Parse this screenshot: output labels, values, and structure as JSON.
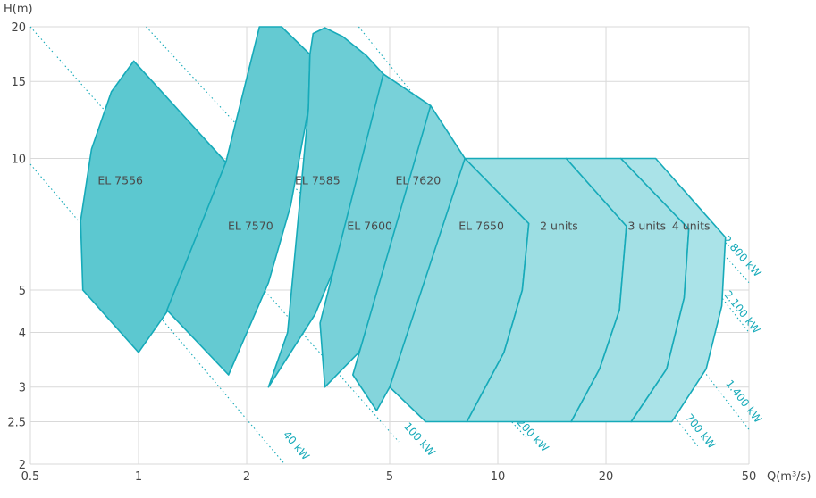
{
  "chart_data": {
    "type": "area",
    "xlabel": "Q(m³/s)",
    "ylabel": "H(m)",
    "x_scale": "log",
    "y_scale": "log",
    "xlim": [
      0.5,
      50
    ],
    "ylim": [
      2,
      20
    ],
    "x_ticks": [
      {
        "value": 0.5,
        "label": "0.5"
      },
      {
        "value": 1,
        "label": "1"
      },
      {
        "value": 2,
        "label": "2"
      },
      {
        "value": 5,
        "label": "5"
      },
      {
        "value": 10,
        "label": "10"
      },
      {
        "value": 20,
        "label": "20"
      },
      {
        "value": 50,
        "label": "50"
      }
    ],
    "x_grid": [
      0.5,
      1,
      2,
      5,
      10,
      20,
      50
    ],
    "y_ticks": [
      {
        "value": 2,
        "label": "2"
      },
      {
        "value": 2.5,
        "label": "2.5"
      },
      {
        "value": 3,
        "label": "3"
      },
      {
        "value": 4,
        "label": "4"
      },
      {
        "value": 5,
        "label": "5"
      },
      {
        "value": 10,
        "label": "10"
      },
      {
        "value": 15,
        "label": "15"
      },
      {
        "value": 20,
        "label": "20"
      }
    ],
    "grid": true,
    "regions": [
      {
        "name": "EL 7556",
        "color": "#5cc8d0",
        "label_at": [
          0.89,
          8.9
        ],
        "points": [
          [
            0.7,
            5.0
          ],
          [
            0.69,
            7.2
          ],
          [
            0.74,
            10.5
          ],
          [
            0.84,
            14.2
          ],
          [
            0.97,
            16.7
          ],
          [
            1.75,
            9.8
          ],
          [
            1.58,
            7.4
          ],
          [
            1.3,
            4.9
          ],
          [
            1.0,
            3.6
          ]
        ]
      },
      {
        "name": "EL 7570",
        "color": "#64cad2",
        "label_at": [
          2.05,
          7.0
        ],
        "points": [
          [
            1.2,
            4.5
          ],
          [
            1.75,
            9.8
          ],
          [
            2.17,
            20.0
          ],
          [
            2.5,
            20.0
          ],
          [
            3.0,
            17.3
          ],
          [
            2.97,
            13.0
          ],
          [
            2.65,
            7.8
          ],
          [
            2.3,
            5.2
          ],
          [
            1.78,
            3.2
          ]
        ]
      },
      {
        "name": "EL 7585",
        "color": "#6ccdd5",
        "label_at": [
          3.15,
          8.9
        ],
        "points": [
          [
            2.6,
            4.0
          ],
          [
            2.97,
            13.0
          ],
          [
            3.0,
            17.3
          ],
          [
            3.06,
            19.3
          ],
          [
            3.3,
            19.9
          ],
          [
            3.7,
            19.0
          ],
          [
            4.3,
            17.2
          ],
          [
            4.8,
            15.6
          ],
          [
            4.55,
            11.6
          ],
          [
            3.98,
            7.2
          ],
          [
            3.1,
            4.4
          ],
          [
            2.3,
            3.0
          ]
        ]
      },
      {
        "name": "EL 7600",
        "color": "#78d1d9",
        "label_at": [
          4.4,
          7.0
        ],
        "points": [
          [
            3.2,
            4.2
          ],
          [
            4.8,
            15.6
          ],
          [
            6.5,
            13.2
          ],
          [
            6.12,
            9.5
          ],
          [
            5.25,
            6.0
          ],
          [
            4.1,
            3.6
          ],
          [
            3.3,
            3.0
          ]
        ]
      },
      {
        "name": "EL 7620",
        "color": "#84d5dc",
        "label_at": [
          6.0,
          8.9
        ],
        "points": [
          [
            3.95,
            3.2
          ],
          [
            6.5,
            13.2
          ],
          [
            8.1,
            10.0
          ],
          [
            7.55,
            7.4
          ],
          [
            6.5,
            4.8
          ],
          [
            5.0,
            3.0
          ],
          [
            4.6,
            2.65
          ]
        ]
      },
      {
        "name": "EL 7650",
        "color": "#92dae0",
        "label_at": [
          9.0,
          7.0
        ],
        "points": [
          [
            5.0,
            3.0
          ],
          [
            8.1,
            10.0
          ],
          [
            12.2,
            7.1
          ],
          [
            11.7,
            5.0
          ],
          [
            10.4,
            3.6
          ],
          [
            8.2,
            2.5
          ],
          [
            6.3,
            2.5
          ]
        ]
      },
      {
        "name": "2 units",
        "color": "#9cdee3",
        "label_at": [
          14.8,
          7.0
        ],
        "points": [
          [
            8.2,
            2.5
          ],
          [
            10.4,
            3.6
          ],
          [
            11.7,
            5.0
          ],
          [
            12.2,
            7.1
          ],
          [
            8.1,
            10.0
          ],
          [
            15.5,
            10.0
          ],
          [
            22.8,
            7.0
          ],
          [
            21.8,
            4.5
          ],
          [
            19.2,
            3.3
          ],
          [
            16.0,
            2.5
          ]
        ]
      },
      {
        "name": "3 units",
        "color": "#a3e0e5",
        "label_at": [
          26.0,
          7.0
        ],
        "points": [
          [
            16.0,
            2.5
          ],
          [
            19.2,
            3.3
          ],
          [
            21.8,
            4.5
          ],
          [
            22.8,
            7.0
          ],
          [
            15.5,
            10.0
          ],
          [
            22.0,
            10.0
          ],
          [
            34.0,
            6.9
          ],
          [
            33.0,
            4.8
          ],
          [
            29.5,
            3.3
          ],
          [
            23.5,
            2.5
          ]
        ]
      },
      {
        "name": "4 units",
        "color": "#aae3e8",
        "label_at": [
          34.5,
          7.0
        ],
        "points": [
          [
            23.5,
            2.5
          ],
          [
            29.5,
            3.3
          ],
          [
            33.0,
            4.8
          ],
          [
            34.0,
            6.9
          ],
          [
            22.0,
            10.0
          ],
          [
            27.5,
            10.0
          ],
          [
            43.0,
            6.6
          ],
          [
            42.0,
            4.6
          ],
          [
            38.0,
            3.3
          ],
          [
            30.5,
            2.5
          ]
        ]
      }
    ],
    "power_lines": [
      {
        "label": "40 kW",
        "from": [
          0.5,
          9.7
        ],
        "to": [
          2.55,
          2.0
        ],
        "label_at": [
          2.7,
          2.18
        ]
      },
      {
        "label": "100 kW",
        "from": [
          0.5,
          20.0
        ],
        "to": [
          5.3,
          2.25
        ],
        "label_at": [
          5.95,
          2.25
        ]
      },
      {
        "label": "200 kW",
        "from": [
          1.05,
          20.0
        ],
        "to": [
          12.0,
          2.3
        ],
        "label_at": [
          12.3,
          2.3
        ]
      },
      {
        "label": "700 kW",
        "from": [
          4.1,
          20.0
        ],
        "to": [
          36.0,
          2.2
        ],
        "label_at": [
          36.0,
          2.35
        ]
      },
      {
        "label": "1.400 kW",
        "from": [
          13.0,
          10.0
        ],
        "to": [
          50.0,
          2.4
        ],
        "label_at": [
          47.5,
          2.75
        ]
      },
      {
        "label": "2.100 kW",
        "from": [
          27.5,
          7.5
        ],
        "to": [
          50.0,
          4.0
        ],
        "label_at": [
          47.0,
          4.4
        ]
      },
      {
        "label": "2.800 kW",
        "from": [
          33.5,
          7.5
        ],
        "to": [
          50.0,
          5.2
        ],
        "label_at": [
          47.0,
          5.9
        ]
      }
    ]
  }
}
